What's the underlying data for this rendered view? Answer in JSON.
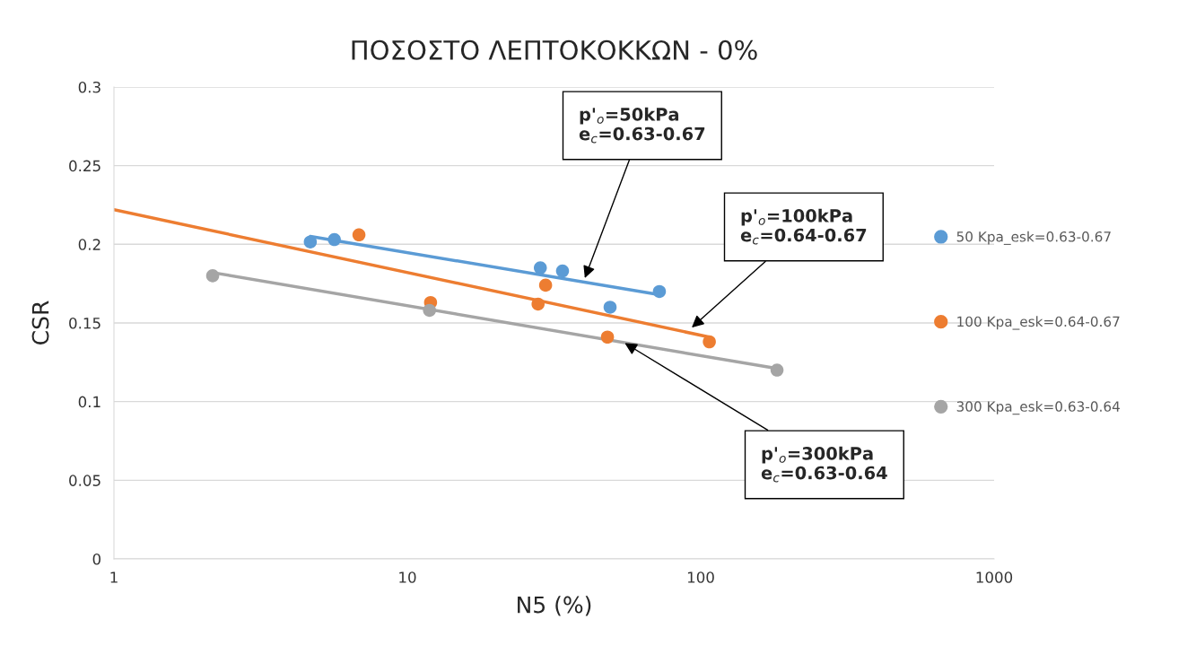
{
  "chart_data": {
    "type": "scatter",
    "title": "ΠΟΣΟΣΤΟ ΛΕΠΤΟΚΟΚΚΩΝ - 0%",
    "xlabel": "N5 (%)",
    "ylabel": "CSR",
    "log": "x",
    "xlim": [
      1,
      1000
    ],
    "xticks": [
      1,
      10,
      100,
      1000
    ],
    "ylim": [
      0,
      0.3
    ],
    "yticks": [
      0,
      0.05,
      0.1,
      0.15,
      0.2,
      0.25,
      0.3
    ],
    "grid": "y",
    "legend": "right",
    "marker": "circle",
    "series": [
      {
        "name": "50 Kpa_esk=0.63-0.67",
        "color": "#5b9bd5",
        "x": [
          4.67,
          5.64,
          28.4,
          33.8,
          49.1,
          72.3
        ],
        "values": [
          0.2015,
          0.203,
          0.185,
          0.183,
          0.16,
          0.17
        ]
      },
      {
        "name": "100 Kpa_esk=0.64-0.67",
        "color": "#ed7d31",
        "x": [
          6.84,
          12.0,
          29.6,
          27.9,
          48.1,
          107
        ],
        "values": [
          0.206,
          0.163,
          0.174,
          0.162,
          0.141,
          0.138
        ]
      },
      {
        "name": "300 Kpa_esk=0.63-0.64",
        "color": "#a5a5a5",
        "x": [
          2.17,
          11.9,
          182
        ],
        "values": [
          0.18,
          0.158,
          0.12
        ]
      },
      {
        "type": "line",
        "marker": "none",
        "color": "#5b9bd5",
        "x": [
          4.67,
          72.3
        ],
        "values": [
          0.205,
          0.168
        ]
      },
      {
        "type": "line",
        "marker": "none",
        "color": "#ed7d31",
        "x": [
          1,
          107
        ],
        "values": [
          0.222,
          0.141
        ]
      },
      {
        "type": "line",
        "marker": "none",
        "color": "#a5a5a5",
        "x": [
          2.17,
          182
        ],
        "values": [
          0.182,
          0.121
        ]
      }
    ],
    "annotations": [
      {
        "text": "p'$_{o}$=50kPa\ne$_{c}$=0.63-0.67",
        "x": 40.0,
        "y": 0.177
      },
      {
        "text": "p'$_{o}$=100kPa\ne$_{c}$=0.64-0.67",
        "x": 91.9,
        "y": 0.146
      },
      {
        "text": "p'$_{o}$=300kPa\ne$_{c}$=0.63-0.64",
        "x": 54.2,
        "y": 0.138
      }
    ]
  }
}
